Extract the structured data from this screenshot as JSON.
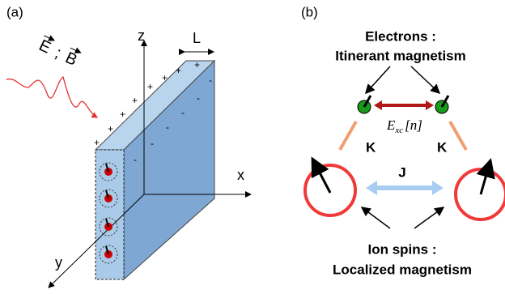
{
  "panel_a": {
    "label": "(a)",
    "field_e": "E",
    "field_sep": ";",
    "field_b": "B",
    "axis_z": "z",
    "axis_x": "x",
    "axis_y": "y",
    "thickness": "L",
    "plus_sign": "+",
    "minus_sign": "-"
  },
  "panel_b": {
    "label": "(b)",
    "electrons_title": "Electrons :",
    "electrons_subtitle": "Itinerant magnetism",
    "exchange_symbol": "E",
    "exchange_subscript": "xc",
    "exchange_argument": "[n]",
    "coupling_k_left": "K",
    "coupling_k_right": "K",
    "coupling_j": "J",
    "ions_title": "Ion spins :",
    "ions_subtitle": "Localized magnetism"
  }
}
